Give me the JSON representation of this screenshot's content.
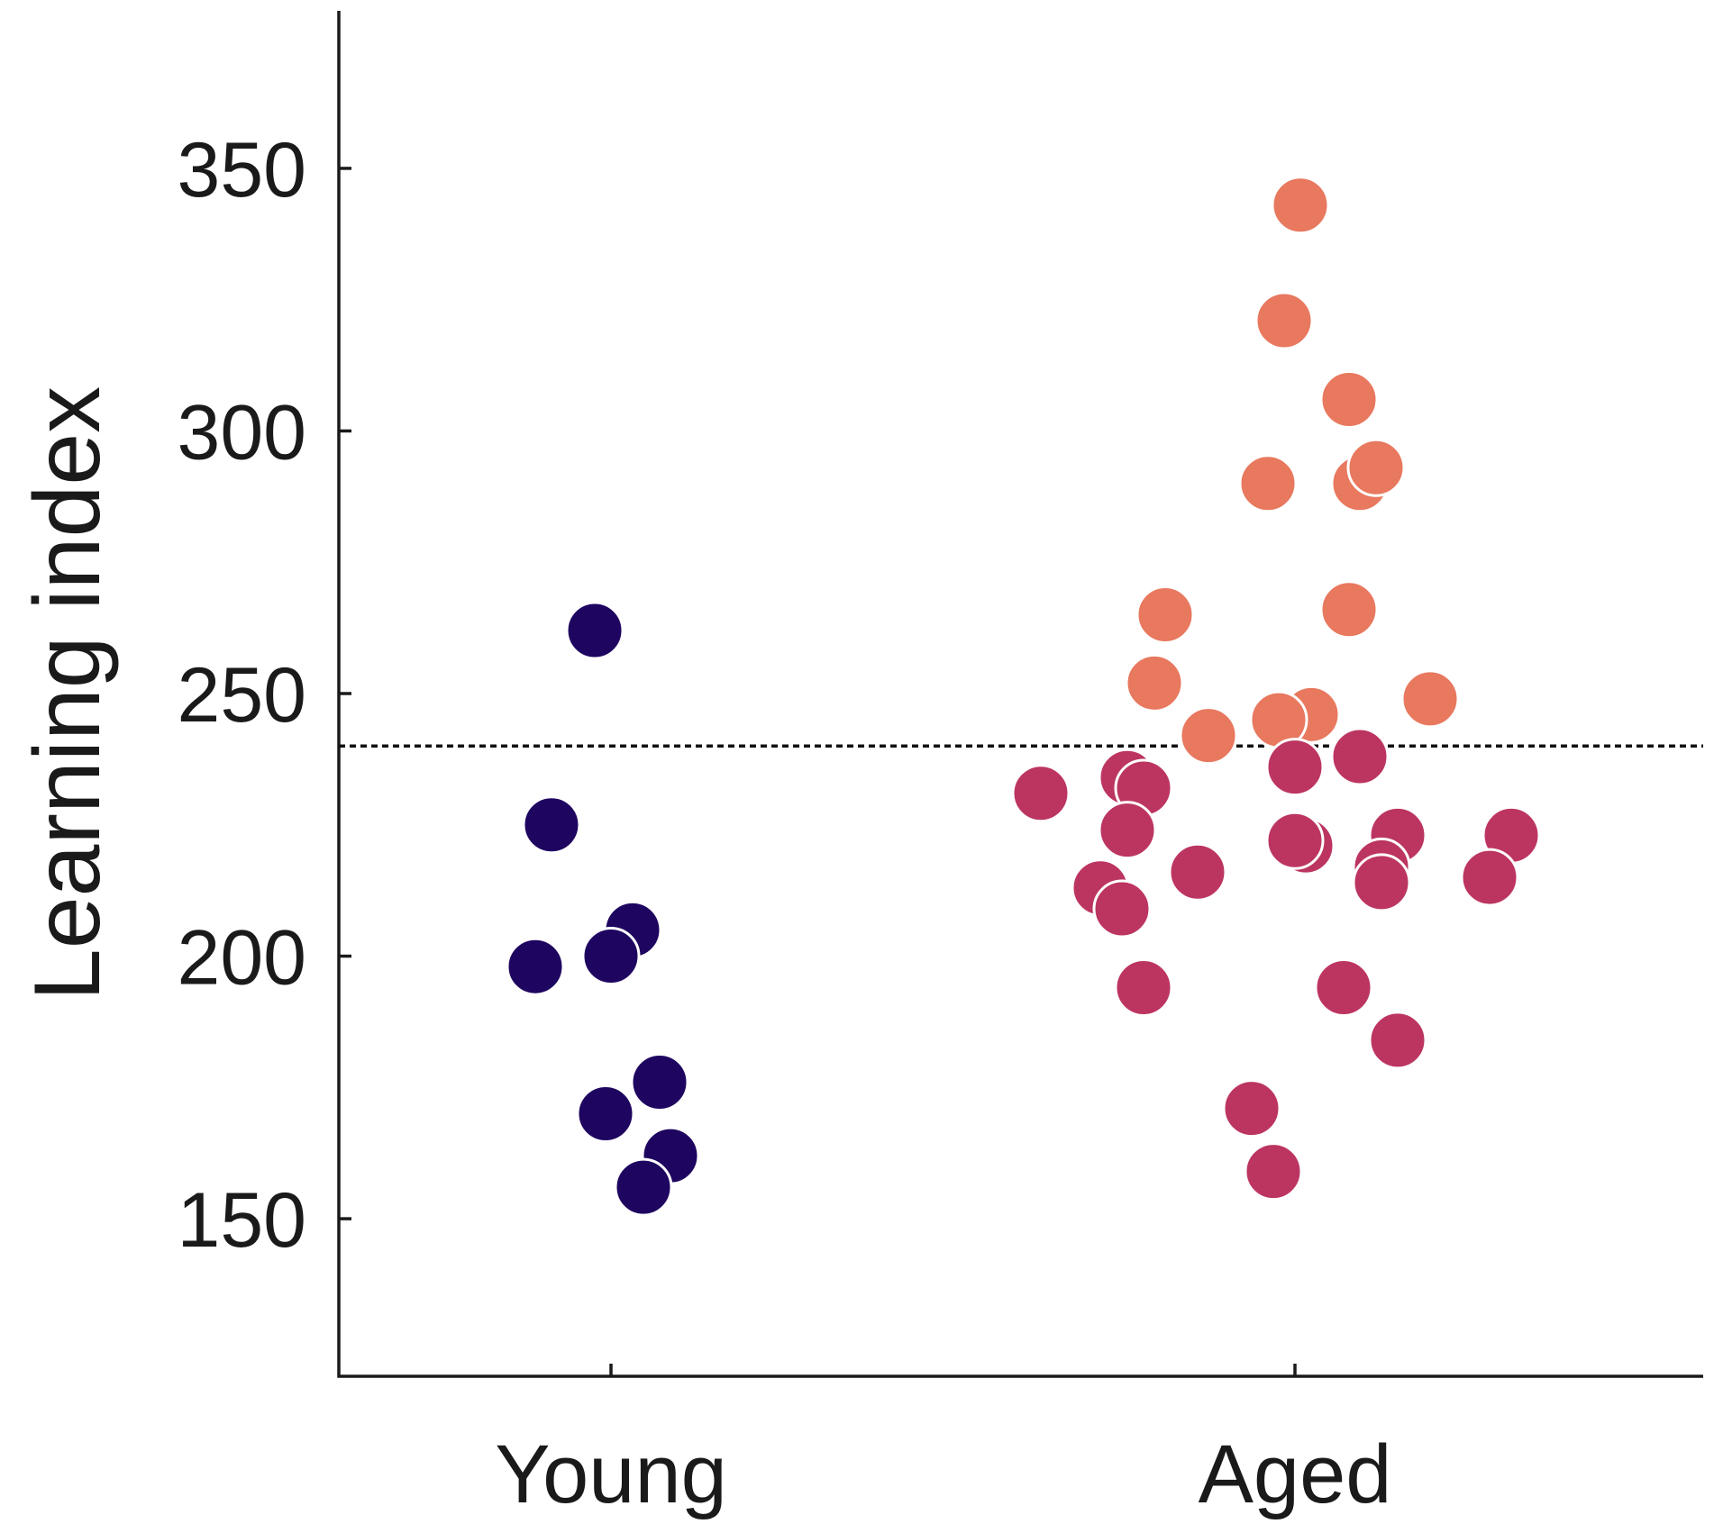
{
  "chart_data": {
    "type": "scatter",
    "title": "",
    "xlabel": "",
    "ylabel": "Learning index",
    "categories": [
      "Young",
      "Aged"
    ],
    "ylim": [
      120,
      380
    ],
    "yticks": [
      150,
      200,
      250,
      300,
      350
    ],
    "grid": false,
    "legend": "none",
    "threshold": 240,
    "colors": {
      "young": "#1e0560",
      "aged_below": "#bc3560",
      "aged_above": "#e8785e"
    },
    "series": [
      {
        "category": "Young",
        "color": "#1e0560",
        "points": [
          {
            "jitter": -0.03,
            "y": 262
          },
          {
            "jitter": -0.11,
            "y": 225
          },
          {
            "jitter": 0.04,
            "y": 205
          },
          {
            "jitter": 0.0,
            "y": 200
          },
          {
            "jitter": -0.14,
            "y": 198
          },
          {
            "jitter": 0.09,
            "y": 176
          },
          {
            "jitter": -0.01,
            "y": 170
          },
          {
            "jitter": 0.11,
            "y": 162
          },
          {
            "jitter": 0.06,
            "y": 156
          }
        ]
      },
      {
        "category": "Aged",
        "color_below_threshold": "#bc3560",
        "color_above_threshold": "#e8785e",
        "points": [
          {
            "jitter": 0.01,
            "y": 343
          },
          {
            "jitter": -0.02,
            "y": 321
          },
          {
            "jitter": 0.1,
            "y": 306
          },
          {
            "jitter": 0.12,
            "y": 290
          },
          {
            "jitter": 0.15,
            "y": 293
          },
          {
            "jitter": -0.05,
            "y": 290
          },
          {
            "jitter": -0.24,
            "y": 265
          },
          {
            "jitter": 0.1,
            "y": 266
          },
          {
            "jitter": -0.26,
            "y": 252
          },
          {
            "jitter": 0.25,
            "y": 249
          },
          {
            "jitter": 0.03,
            "y": 246
          },
          {
            "jitter": -0.03,
            "y": 245
          },
          {
            "jitter": -0.16,
            "y": 242
          },
          {
            "jitter": -0.31,
            "y": 234
          },
          {
            "jitter": -0.28,
            "y": 232
          },
          {
            "jitter": 0.0,
            "y": 236
          },
          {
            "jitter": 0.12,
            "y": 238
          },
          {
            "jitter": -0.47,
            "y": 231
          },
          {
            "jitter": -0.31,
            "y": 224
          },
          {
            "jitter": 0.19,
            "y": 223
          },
          {
            "jitter": 0.4,
            "y": 223
          },
          {
            "jitter": 0.02,
            "y": 221
          },
          {
            "jitter": 0.0,
            "y": 222
          },
          {
            "jitter": -0.18,
            "y": 216
          },
          {
            "jitter": 0.16,
            "y": 217
          },
          {
            "jitter": -0.36,
            "y": 213
          },
          {
            "jitter": 0.16,
            "y": 214
          },
          {
            "jitter": 0.36,
            "y": 215
          },
          {
            "jitter": -0.32,
            "y": 209
          },
          {
            "jitter": -0.28,
            "y": 194
          },
          {
            "jitter": 0.09,
            "y": 194
          },
          {
            "jitter": 0.19,
            "y": 184
          },
          {
            "jitter": -0.08,
            "y": 171
          },
          {
            "jitter": -0.04,
            "y": 159
          }
        ]
      }
    ]
  }
}
